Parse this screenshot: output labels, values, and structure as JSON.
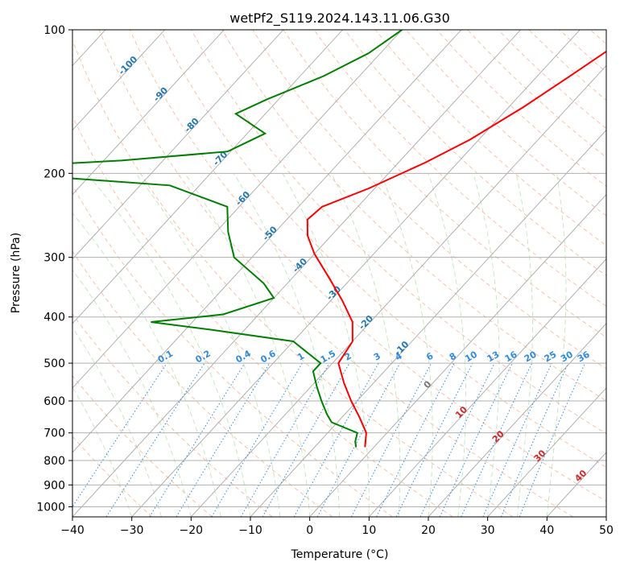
{
  "chart_data": {
    "type": "line",
    "subtype": "skew-T log-P diagram",
    "title": "wetPf2_S119.2024.143.11.06.G30",
    "xlabel": "Temperature (°C)",
    "ylabel": "Pressure (hPa)",
    "xlim": [
      -40,
      50
    ],
    "ylim": [
      1050,
      100
    ],
    "yscale": "log",
    "x_ticks": [
      "−40",
      "−30",
      "−20",
      "−10",
      "0",
      "10",
      "20",
      "30",
      "40",
      "50"
    ],
    "y_ticks": [
      "100",
      "200",
      "300",
      "400",
      "500",
      "600",
      "700",
      "800",
      "900",
      "1000"
    ],
    "grid": true,
    "isotherm_labels": [
      "-100",
      "-90",
      "-80",
      "-70",
      "-60",
      "-50",
      "-40",
      "-30",
      "-20",
      "-10",
      "0",
      "10",
      "20",
      "30",
      "40"
    ],
    "mixing_ratio_labels": [
      "0.1",
      "0.2",
      "0.4",
      "0.6",
      "1",
      "1.5",
      "2",
      "3",
      "4",
      "6",
      "8",
      "10",
      "13",
      "16",
      "20",
      "25",
      "30",
      "36"
    ],
    "series": [
      {
        "color": "#ff0000",
        "points": [
          [
            -20.0,
            100
          ],
          [
            -22.0,
            110
          ],
          [
            -24.5,
            125
          ],
          [
            -27.5,
            145
          ],
          [
            -31.5,
            170
          ],
          [
            -35.5,
            190
          ],
          [
            -41.0,
            215
          ],
          [
            -46.0,
            235
          ],
          [
            -46.5,
            250
          ],
          [
            -44.0,
            270
          ],
          [
            -40.0,
            295
          ],
          [
            -34.0,
            330
          ],
          [
            -28.0,
            370
          ],
          [
            -23.0,
            410
          ],
          [
            -20.0,
            450
          ],
          [
            -19.0,
            500
          ],
          [
            -15.0,
            550
          ],
          [
            -11.0,
            600
          ],
          [
            -7.0,
            650
          ],
          [
            -3.5,
            700
          ],
          [
            -1.5,
            750
          ]
        ]
      },
      {
        "color": "#008000",
        "points": [
          [
            -60.0,
            100
          ],
          [
            -62.0,
            112
          ],
          [
            -66.0,
            125
          ],
          [
            -72.0,
            140
          ],
          [
            -75.0,
            150
          ],
          [
            -67.0,
            165
          ],
          [
            -70.5,
            180
          ],
          [
            -87.0,
            188
          ],
          [
            -100.0,
            192
          ],
          [
            -100.0,
            202
          ],
          [
            -75.0,
            212
          ],
          [
            -62.0,
            235
          ],
          [
            -58.0,
            265
          ],
          [
            -53.0,
            300
          ],
          [
            -44.0,
            340
          ],
          [
            -40.0,
            365
          ],
          [
            -46.0,
            395
          ],
          [
            -57.0,
            410
          ],
          [
            -46.0,
            425
          ],
          [
            -30.0,
            450
          ],
          [
            -22.0,
            500
          ],
          [
            -22.0,
            520
          ],
          [
            -19.0,
            560
          ],
          [
            -16.0,
            600
          ],
          [
            -13.0,
            640
          ],
          [
            -11.0,
            665
          ],
          [
            -5.0,
            700
          ],
          [
            -4.0,
            730
          ],
          [
            -3.0,
            750
          ]
        ]
      }
    ]
  }
}
